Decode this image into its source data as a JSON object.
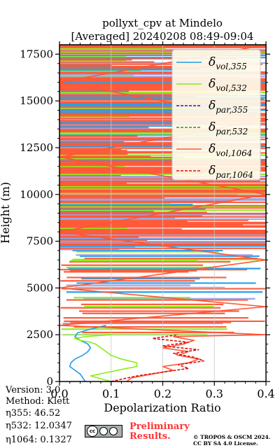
{
  "chart_data": {
    "type": "line",
    "title_line1": "pollyxt_cpv at Mindelo",
    "title_line2": "[Averaged] 20240208 08:49-09:04",
    "xlabel": "Depolarization Ratio",
    "ylabel": "Height (m)",
    "xlim": [
      0.0,
      0.4
    ],
    "ylim": [
      0,
      18000
    ],
    "xticks": [
      0.0,
      0.1,
      0.2,
      0.3,
      0.4
    ],
    "xtick_labels": [
      "0.0",
      "0.1",
      "0.2",
      "0.3",
      "0.4"
    ],
    "yticks": [
      0,
      2500,
      5000,
      7500,
      10000,
      12500,
      15000,
      17500
    ],
    "ytick_labels": [
      "0",
      "2500",
      "5000",
      "7500",
      "10000",
      "12500",
      "15000",
      "17500"
    ],
    "grid": true,
    "legend_location": "top-right",
    "series": [
      {
        "name": "δvol,355",
        "legend_base": "δ",
        "legend_sub": "vol,355",
        "color": "#1f9be8",
        "dash": "solid",
        "x": [
          0.05,
          0.045,
          0.04,
          0.03,
          0.02,
          0.022,
          0.03,
          0.045,
          0.055,
          0.06,
          0.055,
          0.04,
          0.03,
          0.035,
          0.06,
          0.09
        ],
        "y": [
          0,
          200,
          400,
          600,
          800,
          1000,
          1200,
          1400,
          1600,
          1800,
          2000,
          2200,
          2400,
          2600,
          2800,
          3000
        ]
      },
      {
        "name": "δvol,532",
        "legend_base": "δ",
        "legend_sub": "vol,532",
        "color": "#88ee11",
        "dash": "solid",
        "x": [
          0.1,
          0.06,
          0.095,
          0.13,
          0.15,
          0.15,
          0.12,
          0.1,
          0.09,
          0.08,
          0.07,
          0.06,
          0.04,
          0.03,
          0.05,
          0.1
        ],
        "y": [
          0,
          300,
          500,
          700,
          800,
          1000,
          1200,
          1400,
          1600,
          1800,
          2000,
          2100,
          2200,
          2300,
          2400,
          2500
        ]
      },
      {
        "name": "δpar,355",
        "legend_base": "δ",
        "legend_sub": "par,355",
        "color": "#1a1adb",
        "dash": "dashed",
        "x": [],
        "y": []
      },
      {
        "name": "δpar,532",
        "legend_base": "δ",
        "legend_sub": "par,532",
        "color": "#229922",
        "dash": "dashed",
        "x": [],
        "y": []
      },
      {
        "name": "δvol,1064",
        "legend_base": "δ",
        "legend_sub": "vol,1064",
        "color": "#ff5533",
        "dash": "solid",
        "x": [
          0.13,
          0.14,
          0.18,
          0.22,
          0.2,
          0.25,
          0.27,
          0.23,
          0.25,
          0.2,
          0.24,
          0.26,
          0.22,
          0.4,
          0.0,
          0.4,
          0.0,
          0.4,
          0.0,
          0.4,
          0.0,
          0.4,
          0.0,
          0.4
        ],
        "y": [
          0,
          200,
          400,
          600,
          800,
          1000,
          1200,
          1400,
          1600,
          1800,
          2000,
          2200,
          2400,
          2500,
          3000,
          4000,
          5000,
          6500,
          8000,
          10000,
          12000,
          14000,
          16000,
          18000
        ]
      },
      {
        "name": "δpar,1064",
        "legend_base": "δ",
        "legend_sub": "par,1064",
        "color": "#dd1111",
        "dash": "dashed",
        "x": [
          0.1,
          0.15,
          0.2,
          0.25,
          0.23,
          0.28,
          0.26,
          0.22,
          0.27,
          0.2,
          0.25,
          0.18,
          0.23
        ],
        "y": [
          0,
          300,
          500,
          700,
          900,
          1100,
          1300,
          1500,
          1700,
          1900,
          2100,
          2300,
          2500
        ]
      }
    ]
  },
  "footer": {
    "version": "Version: 3.0",
    "method": "Method: Klett",
    "eta355": "η355:  46.52",
    "eta532": "η532: 12.0347",
    "eta1064": "η1064: 0.1327",
    "cc_label": "cc",
    "preliminary": "Preliminary",
    "results": "Results.",
    "copyright1": "© TROPOS & OSCM 2024.",
    "copyright2": "CC BY SA 4.0 License."
  }
}
